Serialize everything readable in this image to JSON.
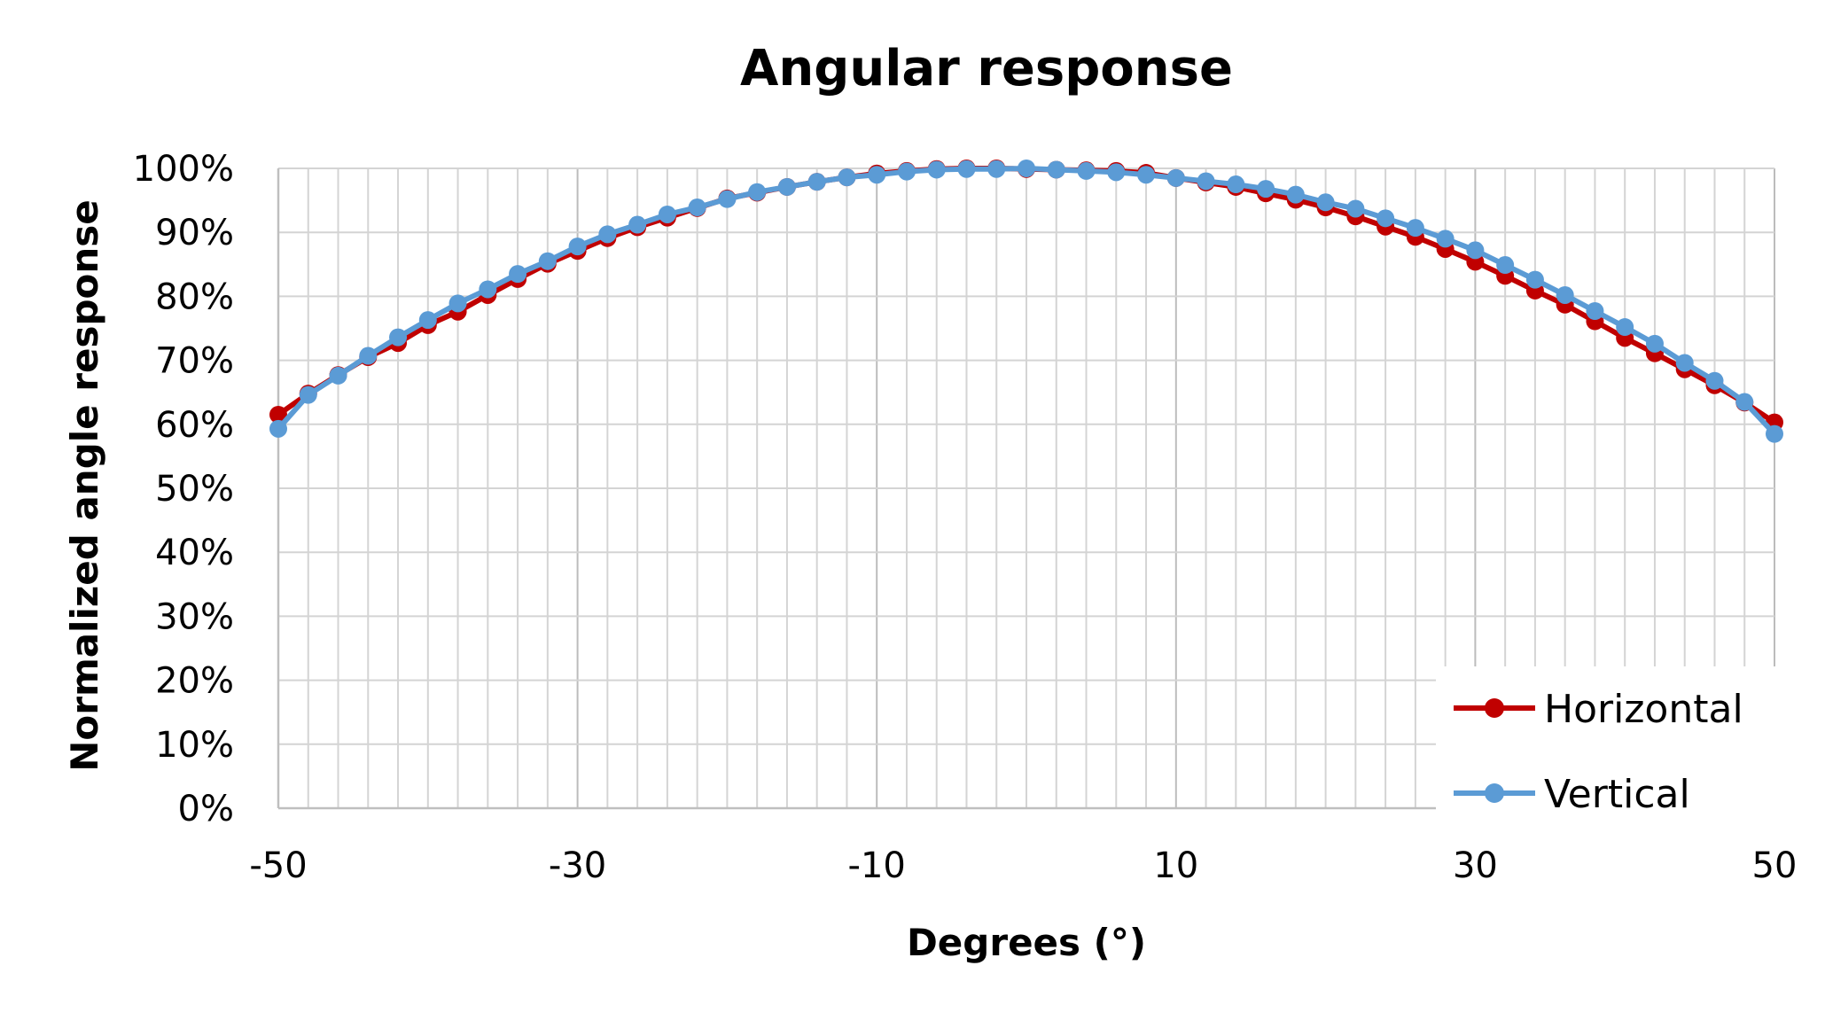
{
  "chart_data": {
    "type": "line",
    "title": "Angular response",
    "xlabel": "Degrees (°)",
    "ylabel": "Normalized angle response",
    "xlim": [
      -50,
      50
    ],
    "ylim": [
      0,
      1
    ],
    "x_ticks": [
      -50,
      -30,
      -10,
      10,
      30,
      50
    ],
    "x_tick_labels": [
      "-50",
      "-30",
      "-10",
      "10",
      "30",
      "50"
    ],
    "y_ticks": [
      0,
      0.1,
      0.2,
      0.3,
      0.4,
      0.5,
      0.6,
      0.7,
      0.8,
      0.9,
      1.0
    ],
    "y_tick_labels": [
      "0%",
      "10%",
      "20%",
      "30%",
      "40%",
      "50%",
      "60%",
      "70%",
      "80%",
      "90%",
      "100%"
    ],
    "grid": true,
    "legend_position": "bottom-right",
    "x": [
      -50,
      -48,
      -46,
      -44,
      -42,
      -40,
      -38,
      -36,
      -34,
      -32,
      -30,
      -28,
      -26,
      -24,
      -22,
      -20,
      -18,
      -16,
      -14,
      -12,
      -10,
      -8,
      -6,
      -4,
      -2,
      0,
      2,
      4,
      6,
      8,
      10,
      12,
      14,
      16,
      18,
      20,
      22,
      24,
      26,
      28,
      30,
      32,
      34,
      36,
      38,
      40,
      42,
      44,
      46,
      48,
      50
    ],
    "series": [
      {
        "name": "Horizontal",
        "color": "#c00000",
        "values": [
          0.615,
          0.648,
          0.677,
          0.705,
          0.727,
          0.755,
          0.776,
          0.802,
          0.827,
          0.851,
          0.871,
          0.891,
          0.908,
          0.923,
          0.938,
          0.953,
          0.962,
          0.971,
          0.979,
          0.986,
          0.992,
          0.996,
          0.999,
          1.0,
          1.0,
          0.999,
          0.998,
          0.997,
          0.996,
          0.993,
          0.985,
          0.978,
          0.971,
          0.961,
          0.951,
          0.939,
          0.925,
          0.909,
          0.893,
          0.874,
          0.854,
          0.832,
          0.809,
          0.787,
          0.761,
          0.735,
          0.711,
          0.686,
          0.661,
          0.634,
          0.603
        ]
      },
      {
        "name": "Vertical",
        "color": "#5b9bd5",
        "values": [
          0.593,
          0.646,
          0.676,
          0.707,
          0.736,
          0.763,
          0.789,
          0.811,
          0.835,
          0.855,
          0.878,
          0.897,
          0.912,
          0.928,
          0.939,
          0.952,
          0.963,
          0.971,
          0.979,
          0.986,
          0.99,
          0.995,
          0.998,
          0.999,
          0.999,
          1.0,
          0.998,
          0.996,
          0.994,
          0.99,
          0.985,
          0.98,
          0.975,
          0.968,
          0.959,
          0.947,
          0.937,
          0.922,
          0.907,
          0.89,
          0.872,
          0.849,
          0.826,
          0.802,
          0.777,
          0.752,
          0.726,
          0.696,
          0.668,
          0.635,
          0.585
        ]
      }
    ]
  }
}
